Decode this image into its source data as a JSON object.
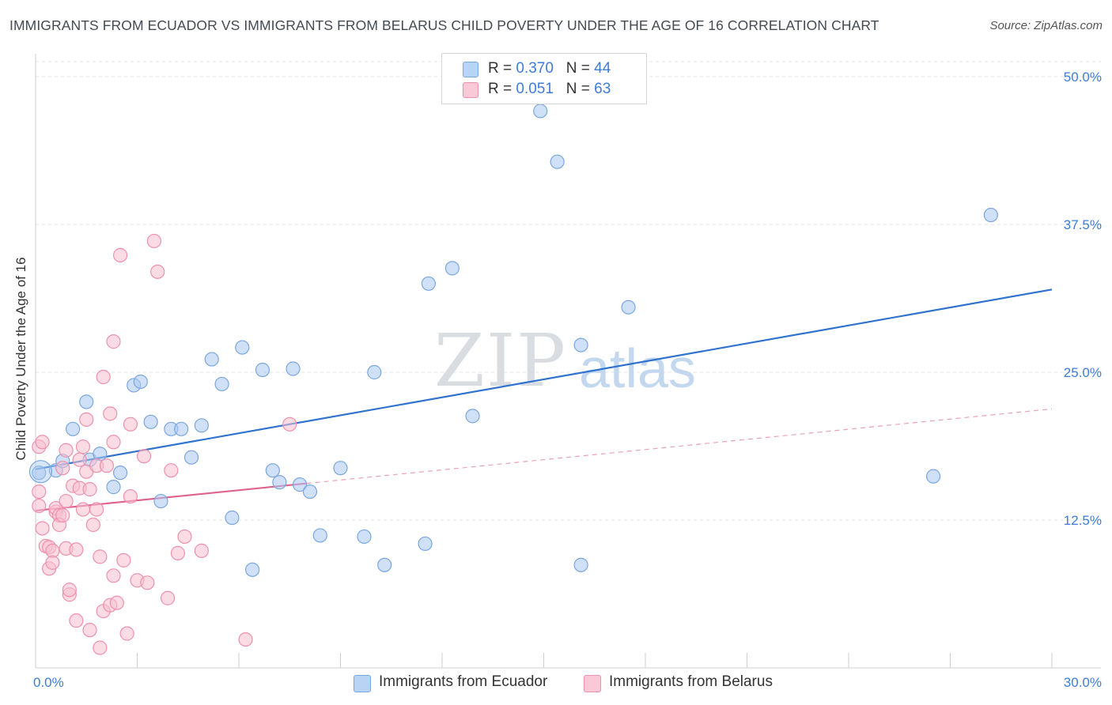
{
  "title": "IMMIGRANTS FROM ECUADOR VS IMMIGRANTS FROM BELARUS CHILD POVERTY UNDER THE AGE OF 16 CORRELATION CHART",
  "source": "Source: ZipAtlas.com",
  "watermark": {
    "zip": "ZIP",
    "atlas": "atlas"
  },
  "legend": {
    "series1": {
      "r_label": "R = ",
      "r_value": "0.370",
      "n_label": "N = ",
      "n_value": "44"
    },
    "series2": {
      "r_label": "R = ",
      "r_value": "0.051",
      "n_label": "N = ",
      "n_value": "63"
    }
  },
  "chart_data": {
    "type": "scatter",
    "title": "IMMIGRANTS FROM ECUADOR VS IMMIGRANTS FROM BELARUS CHILD POVERTY UNDER THE AGE OF 16 CORRELATION CHART",
    "xlabel": "",
    "ylabel": "Child Poverty Under the Age of 16",
    "xlim": [
      0,
      30
    ],
    "ylim": [
      0,
      50
    ],
    "x_tick_labels": [
      "0.0%",
      "30.0%"
    ],
    "y_ticks": [
      12.5,
      25.0,
      37.5,
      50.0
    ],
    "y_tick_labels": [
      "12.5%",
      "25.0%",
      "37.5%",
      "50.0%"
    ],
    "grid": true,
    "legend_position": "top-center",
    "series": [
      {
        "name": "Immigrants from Ecuador",
        "color": "#a9c8f0",
        "edge": "#7aa6e0",
        "line_color": "#2f73cf",
        "trend": {
          "x0": 0,
          "y0": 16.8,
          "x1": 30,
          "y1": 32.0,
          "dashed_from": null
        },
        "points": [
          [
            0.1,
            16.5
          ],
          [
            0.6,
            16.7
          ],
          [
            0.8,
            17.5
          ],
          [
            1.1,
            20.2
          ],
          [
            1.5,
            22.5
          ],
          [
            1.6,
            17.6
          ],
          [
            1.9,
            18.1
          ],
          [
            2.3,
            15.3
          ],
          [
            2.5,
            16.5
          ],
          [
            2.9,
            23.9
          ],
          [
            3.1,
            24.2
          ],
          [
            3.4,
            20.8
          ],
          [
            3.7,
            14.1
          ],
          [
            4.0,
            20.2
          ],
          [
            4.3,
            20.2
          ],
          [
            4.6,
            17.8
          ],
          [
            4.9,
            20.5
          ],
          [
            5.2,
            26.1
          ],
          [
            5.5,
            24.0
          ],
          [
            5.8,
            12.7
          ],
          [
            6.1,
            27.1
          ],
          [
            6.4,
            8.3
          ],
          [
            6.7,
            25.2
          ],
          [
            7.0,
            16.7
          ],
          [
            7.2,
            15.7
          ],
          [
            7.6,
            25.3
          ],
          [
            7.8,
            15.5
          ],
          [
            8.1,
            14.9
          ],
          [
            8.4,
            11.2
          ],
          [
            9.0,
            16.9
          ],
          [
            9.7,
            11.1
          ],
          [
            10.0,
            25.0
          ],
          [
            10.3,
            8.7
          ],
          [
            11.5,
            10.5
          ],
          [
            11.6,
            32.5
          ],
          [
            12.3,
            33.8
          ],
          [
            12.9,
            21.3
          ],
          [
            14.9,
            47.1
          ],
          [
            15.4,
            42.8
          ],
          [
            16.1,
            8.7
          ],
          [
            16.1,
            27.3
          ],
          [
            17.5,
            30.5
          ],
          [
            26.5,
            16.2
          ],
          [
            28.2,
            38.3
          ]
        ]
      },
      {
        "name": "Immigrants from Belarus",
        "color": "#f7bfd0",
        "edge": "#ee90ad",
        "line_color": "#e0628f",
        "trend": {
          "x0": 0,
          "y0": 13.3,
          "x1": 8,
          "y1": 15.6,
          "dashed_to_x": 30,
          "dashed_to_y": 21.9
        },
        "points": [
          [
            0.1,
            18.7
          ],
          [
            0.1,
            14.9
          ],
          [
            0.1,
            13.7
          ],
          [
            0.2,
            11.8
          ],
          [
            0.2,
            19.1
          ],
          [
            0.3,
            10.3
          ],
          [
            0.4,
            10.2
          ],
          [
            0.4,
            8.4
          ],
          [
            0.5,
            9.9
          ],
          [
            0.5,
            8.9
          ],
          [
            0.6,
            13.2
          ],
          [
            0.6,
            13.5
          ],
          [
            0.7,
            12.9
          ],
          [
            0.7,
            12.1
          ],
          [
            0.8,
            12.9
          ],
          [
            0.8,
            16.9
          ],
          [
            0.9,
            10.1
          ],
          [
            0.9,
            18.4
          ],
          [
            0.9,
            14.1
          ],
          [
            1.0,
            6.2
          ],
          [
            1.0,
            6.6
          ],
          [
            1.1,
            15.4
          ],
          [
            1.2,
            10.0
          ],
          [
            1.2,
            4.0
          ],
          [
            1.3,
            17.6
          ],
          [
            1.3,
            15.2
          ],
          [
            1.4,
            18.7
          ],
          [
            1.4,
            13.4
          ],
          [
            1.5,
            16.6
          ],
          [
            1.5,
            21.0
          ],
          [
            1.6,
            3.2
          ],
          [
            1.6,
            15.1
          ],
          [
            1.7,
            12.1
          ],
          [
            1.8,
            17.1
          ],
          [
            1.8,
            13.4
          ],
          [
            1.9,
            9.4
          ],
          [
            1.9,
            1.7
          ],
          [
            2.0,
            4.8
          ],
          [
            2.0,
            24.6
          ],
          [
            2.1,
            17.1
          ],
          [
            2.2,
            5.3
          ],
          [
            2.2,
            21.5
          ],
          [
            2.3,
            27.6
          ],
          [
            2.3,
            7.8
          ],
          [
            2.3,
            19.1
          ],
          [
            2.4,
            5.5
          ],
          [
            2.5,
            34.9
          ],
          [
            2.6,
            9.1
          ],
          [
            2.7,
            2.9
          ],
          [
            2.8,
            14.5
          ],
          [
            2.8,
            20.6
          ],
          [
            3.0,
            7.4
          ],
          [
            3.2,
            17.9
          ],
          [
            3.3,
            7.2
          ],
          [
            3.5,
            36.1
          ],
          [
            3.6,
            33.5
          ],
          [
            3.9,
            5.9
          ],
          [
            4.0,
            16.7
          ],
          [
            4.2,
            9.7
          ],
          [
            4.4,
            11.1
          ],
          [
            4.9,
            9.9
          ],
          [
            6.2,
            2.4
          ],
          [
            7.5,
            20.6
          ]
        ]
      }
    ]
  }
}
